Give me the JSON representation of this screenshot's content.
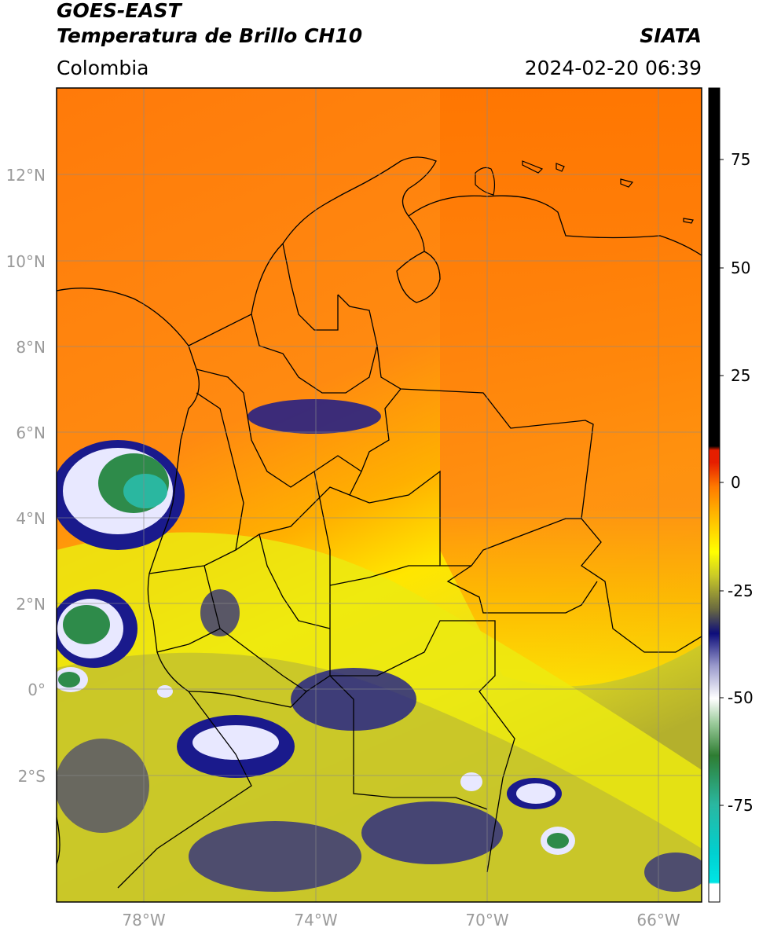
{
  "header": {
    "title_line1": "GOES-EAST",
    "title_line2": "Temperatura de Brillo CH10",
    "agency": "SIATA",
    "region": "Colombia",
    "datetime": "2024-02-20 06:39"
  },
  "axes": {
    "lat_labels": [
      "12°N",
      "10°N",
      "8°N",
      "6°N",
      "4°N",
      "2°N",
      "0°",
      "2°S"
    ],
    "lon_labels": [
      "78°W",
      "74°W",
      "70°W",
      "66°W"
    ]
  },
  "colorbar": {
    "tick_labels": [
      "75",
      "50",
      "25",
      "0",
      "-25",
      "-50",
      "-75"
    ],
    "colors": {
      "black": "#000000",
      "red": "#e61e00",
      "orange": "#ff7a00",
      "yellow": "#ffff00",
      "olive": "#8c8c2a",
      "navy": "#0d0d7a",
      "white": "#ffffff",
      "green": "#2e7d32",
      "teal": "#2ab7a0",
      "cyan": "#00e5e5"
    }
  },
  "map_colors": {
    "sea_orange": "#ff7a0a",
    "land_orange": "#ff8c14",
    "warm_yellow": "#ffd400",
    "yellow": "#f4f000",
    "olive": "#b8b82a",
    "cloud_navy": "#1a1a8c",
    "cloud_white": "#f0f0ff",
    "cloud_green": "#2e8b4a",
    "border": "#000000"
  }
}
